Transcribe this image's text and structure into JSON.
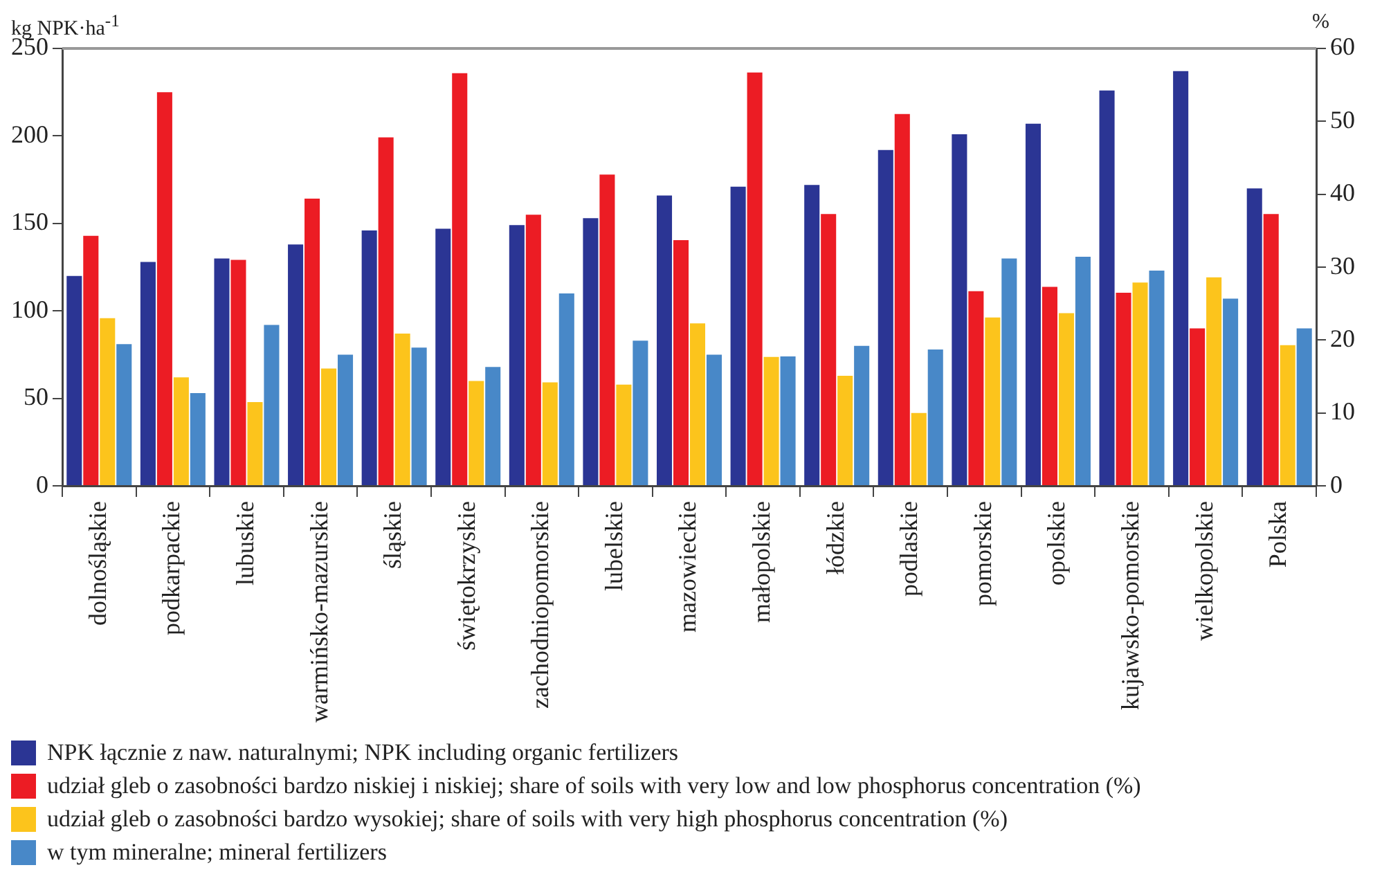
{
  "chart_data": {
    "type": "bar",
    "ylabel": "kg NPK·ha$^{-1}$",
    "y2label": "%",
    "categories": [
      "dolnośląskie",
      "podkarpackie",
      "lubuskie",
      "warmińsko-mazurskie",
      "śląskie",
      "świętokrzyskie",
      "zachodniopomorskie",
      "lubelskie",
      "mazowieckie",
      "małopolskie",
      "łódzkie",
      "podlaskie",
      "pomorskie",
      "opolskie",
      "kujawsko-pomorskie",
      "wielkopolskie",
      "Polska"
    ],
    "series": [
      {
        "name": "NPK łącznie z naw. naturalnymi; NPK including organic fertilizers",
        "color": "#2b3594",
        "values": [
          120,
          128,
          130,
          138,
          146,
          147,
          149,
          153,
          166,
          171,
          172,
          192,
          201,
          207,
          226,
          237,
          170
        ]
      },
      {
        "name": "udział gleb o zasobności bardzo niskiej i niskiej; share of soils with very low and low phosphorus concentration (%)",
        "color": "#ec1c24",
        "axis": "y2",
        "values": [
          34.3,
          54,
          31,
          39.4,
          47.8,
          56.6,
          37.2,
          42.7,
          33.7,
          56.7,
          37.3,
          51,
          26.7,
          27.3,
          26.5,
          21.6,
          37.3
        ]
      },
      {
        "name": "udział gleb o zasobności bardzo wysokiej; share of soils with very high phosphorus concentration (%)",
        "color": "#fcc41c",
        "axis": "y2",
        "values": [
          23,
          14.9,
          11.5,
          16.1,
          20.9,
          14.4,
          14.2,
          13.9,
          22.3,
          17.7,
          15.1,
          10,
          23.1,
          23.7,
          27.9,
          28.6,
          19.3
        ]
      },
      {
        "name": "w tym mineralne; mineral fertilizers",
        "color": "#4888c8",
        "values": [
          81,
          53,
          92,
          75,
          79,
          68,
          110,
          83,
          75,
          74,
          80,
          78,
          130,
          131,
          123,
          107,
          90
        ]
      }
    ],
    "ylim": [
      0,
      250
    ],
    "yticks": [
      0,
      50,
      100,
      150,
      200,
      250
    ],
    "y2lim": [
      0,
      60
    ],
    "y2ticks": [
      0,
      10,
      20,
      30,
      40,
      50,
      60
    ],
    "grid": false,
    "legend": "bottom"
  }
}
